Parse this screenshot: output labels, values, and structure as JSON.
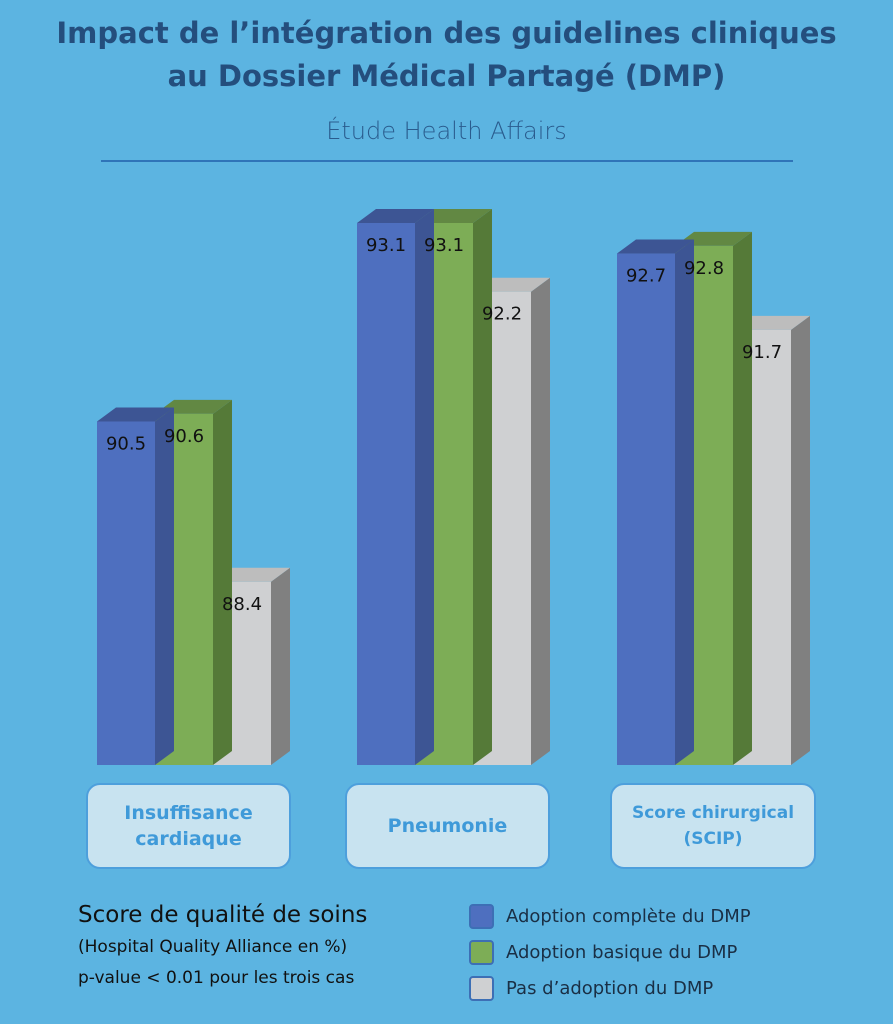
{
  "header": {
    "title_line1": "Impact de l’intégration des guidelines cliniques",
    "title_line2": "au Dossier Médical Partagé (DMP)",
    "subtitle": "Étude Health Affairs"
  },
  "notes": {
    "line1": "Score de qualité de soins",
    "line2": "(Hospital Quality Alliance en %)",
    "line3": "p-value < 0.01 pour les trois cas"
  },
  "category_labels": [
    {
      "line1": "Insuffisance",
      "line2": "cardiaque"
    },
    {
      "line1": "Pneumonie",
      "line2": ""
    },
    {
      "line1": "Score chirurgical",
      "line2": "(SCIP)"
    }
  ],
  "legend": [
    {
      "label": "Adoption complète du DMP",
      "color": "#4e6fbf"
    },
    {
      "label": "Adoption basique du DMP",
      "color": "#7dad56"
    },
    {
      "label": "Pas d’adoption du DMP",
      "color": "#cfd0d2"
    }
  ],
  "chart_data": {
    "type": "bar",
    "title": "Impact de l’intégration des guidelines cliniques au Dossier Médical Partagé (DMP)",
    "subtitle": "Étude Health Affairs",
    "categories": [
      "Insuffisance cardiaque",
      "Pneumonie",
      "Score chirurgical (SCIP)"
    ],
    "series": [
      {
        "name": "Adoption complète du DMP",
        "values": [
          90.5,
          93.1,
          92.7
        ],
        "labels": [
          "90.5",
          "93.1",
          "92.7"
        ],
        "color": "#4e6fbf",
        "top": "#3d5594",
        "side": "#3d5594"
      },
      {
        "name": "Adoption basique du DMP",
        "values": [
          90.6,
          93.1,
          92.8
        ],
        "labels": [
          "90.6",
          "93.1",
          "92.8"
        ],
        "color": "#7dad56",
        "top": "#628843",
        "side": "#557a38"
      },
      {
        "name": "Pas d’adoption du DMP",
        "values": [
          88.4,
          92.2,
          91.7
        ],
        "labels": [
          "88.4",
          "92.2",
          "91.7"
        ],
        "color": "#cfd0d2",
        "top": "#bdbdbd",
        "side": "#808080"
      }
    ],
    "xlabel": "",
    "ylabel": "Score de qualité de soins (Hospital Quality Alliance en %)",
    "ylim": [
      86,
      94
    ],
    "grid": false,
    "legend_position": "bottom-right"
  }
}
